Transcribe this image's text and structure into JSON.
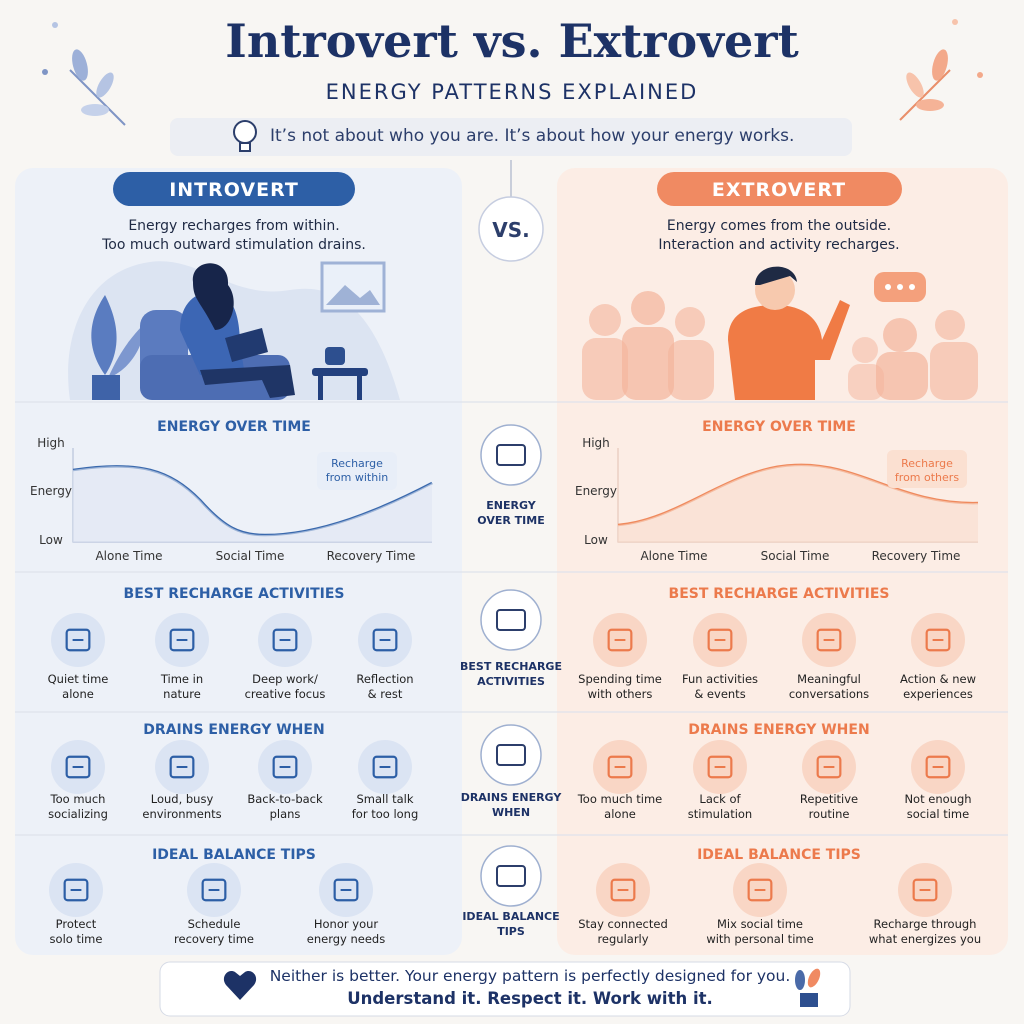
{
  "header": {
    "title": "Introvert vs. Extrovert",
    "subtitle": "ENERGY PATTERNS EXPLAINED",
    "tagline": "It’s not about who you are. It’s about how your energy works."
  },
  "vs": "VS.",
  "middle": [
    [
      "ENERGY",
      "OVER TIME"
    ],
    [
      "BEST RECHARGE",
      "ACTIVITIES"
    ],
    [
      "DRAINS ENERGY",
      "WHEN"
    ],
    [
      "IDEAL BALANCE",
      "TIPS"
    ]
  ],
  "introvert": {
    "label": "INTROVERT",
    "description": [
      "Energy recharges from within.",
      "Too much outward stimulation drains."
    ],
    "energy": {
      "title": "ENERGY OVER TIME",
      "y_labels": [
        "High",
        "Energy",
        "Low"
      ],
      "x_labels": [
        "Alone Time",
        "Social Time",
        "Recovery Time"
      ],
      "annotation": [
        "Recharge",
        "from within"
      ]
    },
    "recharge": {
      "title": "BEST RECHARGE ACTIVITIES",
      "items": [
        [
          "Quiet time",
          "alone"
        ],
        [
          "Time in",
          "nature"
        ],
        [
          "Deep work/",
          "creative focus"
        ],
        [
          "Reflection",
          "& rest"
        ]
      ]
    },
    "drains": {
      "title": "DRAINS ENERGY WHEN",
      "items": [
        [
          "Too much",
          "socializing"
        ],
        [
          "Loud, busy",
          "environments"
        ],
        [
          "Back-to-back",
          "plans"
        ],
        [
          "Small talk",
          "for too long"
        ]
      ]
    },
    "tips": {
      "title": "IDEAL BALANCE TIPS",
      "items": [
        [
          "Protect",
          "solo time"
        ],
        [
          "Schedule",
          "recovery time"
        ],
        [
          "Honor your",
          "energy needs"
        ]
      ]
    }
  },
  "extrovert": {
    "label": "EXTROVERT",
    "description": [
      "Energy comes from the outside.",
      "Interaction and activity recharges."
    ],
    "energy": {
      "title": "ENERGY OVER TIME",
      "y_labels": [
        "High",
        "Energy",
        "Low"
      ],
      "x_labels": [
        "Alone Time",
        "Social Time",
        "Recovery Time"
      ],
      "annotation": [
        "Recharge",
        "from others"
      ]
    },
    "recharge": {
      "title": "BEST RECHARGE ACTIVITIES",
      "items": [
        [
          "Spending time",
          "with others"
        ],
        [
          "Fun activities",
          "& events"
        ],
        [
          "Meaningful",
          "conversations"
        ],
        [
          "Action & new",
          "experiences"
        ]
      ]
    },
    "drains": {
      "title": "DRAINS ENERGY WHEN",
      "items": [
        [
          "Too much time",
          "alone"
        ],
        [
          "Lack of",
          "stimulation"
        ],
        [
          "Repetitive",
          "routine"
        ],
        [
          "Not enough",
          "social time"
        ]
      ]
    },
    "tips": {
      "title": "IDEAL BALANCE TIPS",
      "items": [
        [
          "Stay connected",
          "regularly"
        ],
        [
          "Mix social time",
          "with personal time"
        ],
        [
          "Recharge through",
          "what energizes you"
        ]
      ]
    }
  },
  "footer": [
    "Neither is better. Your energy pattern is perfectly designed for you.",
    "Understand it. Respect it. Work with it."
  ]
}
